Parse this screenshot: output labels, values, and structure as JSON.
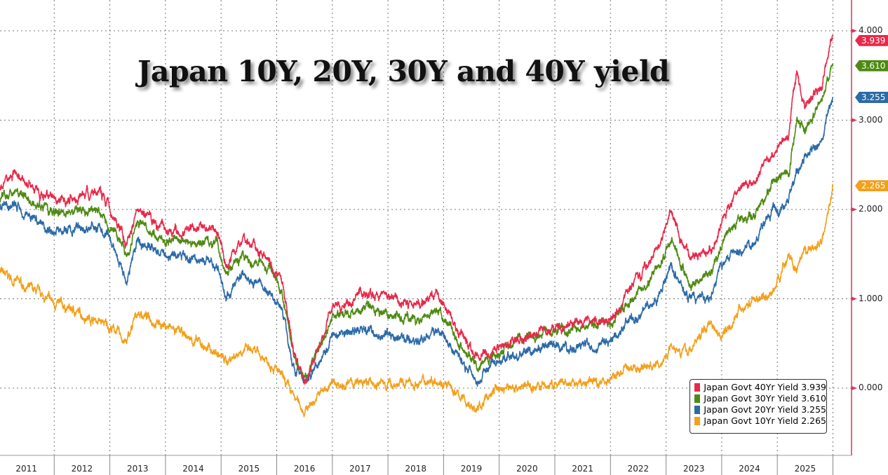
{
  "chart_data": {
    "type": "line",
    "title": "Japan 10Y, 20Y, 30Y and 40Y yield",
    "xlabel": "",
    "ylabel": "",
    "x_tick_labels": [
      "2011",
      "2012",
      "2013",
      "2014",
      "2015",
      "2016",
      "2017",
      "2018",
      "2019",
      "2020",
      "2021",
      "2022",
      "2023",
      "2024",
      "2025"
    ],
    "y_tick_labels": [
      "4.000",
      "3.000",
      "2.000",
      "1.000",
      "0.000"
    ],
    "y_ticks": [
      4,
      3,
      2,
      1,
      0
    ],
    "ylim": [
      -0.55,
      4.35
    ],
    "xlim": [
      2011,
      2026.2
    ],
    "grid": true,
    "legend_position": "bottom-right",
    "x": [
      2011.0,
      2011.3,
      2012.0,
      2012.8,
      2013.1,
      2013.3,
      2013.5,
      2014.0,
      2014.9,
      2015.1,
      2015.4,
      2015.9,
      2016.1,
      2016.3,
      2016.5,
      2016.8,
      2017.0,
      2017.5,
      2018.0,
      2018.5,
      2018.9,
      2019.2,
      2019.6,
      2019.9,
      2020.3,
      2020.8,
      2021.5,
      2022.0,
      2022.3,
      2022.7,
      2022.9,
      2023.1,
      2023.4,
      2023.8,
      2024.0,
      2024.3,
      2024.6,
      2024.9,
      2025.2,
      2025.35,
      2025.5,
      2025.8,
      2026.0
    ],
    "series": [
      {
        "name": "Japan Govt 40Yr Yield",
        "last": "3.939",
        "color": "#e8294a",
        "values": [
          2.3,
          2.4,
          2.1,
          2.2,
          1.9,
          1.6,
          2.0,
          1.75,
          1.8,
          1.4,
          1.7,
          1.4,
          1.2,
          0.4,
          0.1,
          0.5,
          0.9,
          1.05,
          1.05,
          0.9,
          1.05,
          0.7,
          0.35,
          0.45,
          0.55,
          0.65,
          0.72,
          0.75,
          1.1,
          1.4,
          1.6,
          1.95,
          1.5,
          1.5,
          1.9,
          2.2,
          2.3,
          2.65,
          2.8,
          3.6,
          3.15,
          3.4,
          3.939
        ]
      },
      {
        "name": "Japan Govt 30Yr Yield",
        "last": "3.610",
        "color": "#4e8a12",
        "values": [
          2.15,
          2.2,
          1.95,
          2.0,
          1.75,
          1.5,
          1.85,
          1.65,
          1.65,
          1.3,
          1.5,
          1.3,
          1.1,
          0.35,
          0.1,
          0.5,
          0.8,
          0.9,
          0.85,
          0.75,
          0.9,
          0.6,
          0.25,
          0.4,
          0.55,
          0.62,
          0.68,
          0.7,
          0.95,
          1.2,
          1.4,
          1.65,
          1.2,
          1.25,
          1.65,
          1.9,
          1.95,
          2.3,
          2.4,
          3.0,
          2.85,
          3.2,
          3.61
        ]
      },
      {
        "name": "Japan Govt 20Yr Yield",
        "last": "3.255",
        "color": "#2c6aa8",
        "values": [
          2.0,
          2.05,
          1.75,
          1.8,
          1.55,
          1.2,
          1.65,
          1.5,
          1.4,
          1.0,
          1.3,
          1.05,
          0.9,
          0.25,
          0.05,
          0.35,
          0.6,
          0.65,
          0.6,
          0.5,
          0.65,
          0.4,
          0.1,
          0.3,
          0.35,
          0.45,
          0.45,
          0.5,
          0.75,
          0.95,
          1.05,
          1.35,
          1.0,
          1.0,
          1.4,
          1.55,
          1.65,
          1.95,
          2.1,
          2.4,
          2.55,
          2.75,
          3.255
        ]
      },
      {
        "name": "Japan Govt 10Yr Yield",
        "last": "2.265",
        "color": "#f3a01b",
        "values": [
          1.3,
          1.2,
          0.95,
          0.75,
          0.65,
          0.5,
          0.85,
          0.7,
          0.4,
          0.3,
          0.45,
          0.3,
          0.1,
          -0.1,
          -0.25,
          -0.05,
          0.05,
          0.05,
          0.05,
          0.05,
          0.12,
          -0.05,
          -0.25,
          -0.02,
          0.02,
          0.02,
          0.05,
          0.1,
          0.22,
          0.25,
          0.25,
          0.5,
          0.4,
          0.75,
          0.6,
          0.85,
          1.0,
          1.05,
          1.5,
          1.3,
          1.5,
          1.65,
          2.265
        ]
      }
    ]
  }
}
